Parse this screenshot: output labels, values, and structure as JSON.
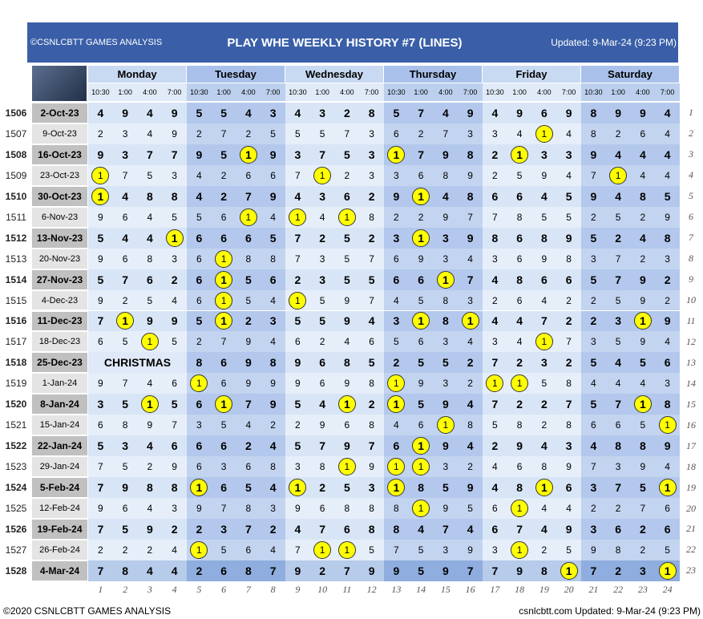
{
  "header": {
    "copyright": "©CSNLCBTT GAMES ANALYSIS",
    "title": "PLAY WHE WEEKLY HISTORY #7 (LINES)",
    "updated": "Updated: 9-Mar-24 (9:23 PM)"
  },
  "days": [
    "Monday",
    "Tuesday",
    "Wednesday",
    "Thursday",
    "Friday",
    "Saturday"
  ],
  "times": [
    "10:30",
    "1:00",
    "4:00",
    "7:00"
  ],
  "rows": [
    {
      "week": 1506,
      "date": "2-Oct-23",
      "values": [
        4,
        9,
        4,
        9,
        5,
        5,
        4,
        3,
        4,
        3,
        2,
        8,
        5,
        7,
        4,
        9,
        4,
        9,
        6,
        9,
        8,
        9,
        9,
        4
      ],
      "index": 1
    },
    {
      "week": 1507,
      "date": "9-Oct-23",
      "values": [
        2,
        3,
        4,
        9,
        2,
        7,
        2,
        5,
        5,
        5,
        7,
        3,
        6,
        2,
        7,
        3,
        3,
        4,
        1,
        4,
        8,
        2,
        6,
        4
      ],
      "index": 2
    },
    {
      "week": 1508,
      "date": "16-Oct-23",
      "values": [
        9,
        3,
        7,
        7,
        9,
        5,
        1,
        9,
        3,
        7,
        5,
        3,
        1,
        7,
        9,
        8,
        2,
        1,
        3,
        3,
        9,
        4,
        4,
        4
      ],
      "index": 3
    },
    {
      "week": 1509,
      "date": "23-Oct-23",
      "values": [
        1,
        7,
        5,
        3,
        4,
        2,
        6,
        6,
        7,
        1,
        2,
        3,
        3,
        6,
        8,
        9,
        2,
        5,
        9,
        4,
        7,
        1,
        4,
        4
      ],
      "index": 4
    },
    {
      "week": 1510,
      "date": "30-Oct-23",
      "values": [
        1,
        4,
        8,
        8,
        4,
        2,
        7,
        9,
        4,
        3,
        6,
        2,
        9,
        1,
        4,
        8,
        6,
        6,
        4,
        5,
        9,
        4,
        8,
        5
      ],
      "index": 5
    },
    {
      "week": 1511,
      "date": "6-Nov-23",
      "values": [
        9,
        6,
        4,
        5,
        5,
        6,
        1,
        4,
        1,
        4,
        1,
        8,
        2,
        2,
        9,
        7,
        7,
        8,
        5,
        5,
        2,
        5,
        2,
        9
      ],
      "index": 6
    },
    {
      "week": 1512,
      "date": "13-Nov-23",
      "values": [
        5,
        4,
        4,
        1,
        6,
        6,
        6,
        5,
        7,
        2,
        5,
        2,
        3,
        1,
        3,
        9,
        8,
        6,
        8,
        9,
        5,
        2,
        4,
        8
      ],
      "index": 7
    },
    {
      "week": 1513,
      "date": "20-Nov-23",
      "values": [
        9,
        6,
        8,
        3,
        6,
        1,
        8,
        8,
        7,
        3,
        5,
        7,
        6,
        9,
        3,
        4,
        3,
        6,
        9,
        8,
        3,
        7,
        2,
        3
      ],
      "index": 8
    },
    {
      "week": 1514,
      "date": "27-Nov-23",
      "values": [
        5,
        7,
        6,
        2,
        6,
        1,
        5,
        6,
        2,
        3,
        5,
        5,
        6,
        6,
        1,
        7,
        4,
        8,
        6,
        6,
        5,
        7,
        9,
        2
      ],
      "index": 9
    },
    {
      "week": 1515,
      "date": "4-Dec-23",
      "values": [
        9,
        2,
        5,
        4,
        6,
        1,
        5,
        4,
        1,
        5,
        9,
        7,
        4,
        5,
        8,
        3,
        2,
        6,
        4,
        2,
        2,
        5,
        9,
        2
      ],
      "index": 10
    },
    {
      "week": 1516,
      "date": "11-Dec-23",
      "values": [
        7,
        1,
        9,
        9,
        5,
        1,
        2,
        3,
        5,
        5,
        9,
        4,
        3,
        1,
        8,
        1,
        4,
        4,
        7,
        2,
        2,
        3,
        1,
        9
      ],
      "index": 11
    },
    {
      "week": 1517,
      "date": "18-Dec-23",
      "values": [
        6,
        5,
        1,
        5,
        2,
        7,
        9,
        4,
        6,
        2,
        4,
        6,
        5,
        6,
        3,
        4,
        3,
        4,
        1,
        7,
        3,
        5,
        9,
        4
      ],
      "index": 12
    },
    {
      "week": 1518,
      "date": "25-Dec-23",
      "label": "CHRISTMAS",
      "values": [
        8,
        6,
        9,
        8,
        9,
        6,
        8,
        5,
        2,
        5,
        5,
        2,
        7,
        2,
        3,
        2,
        5,
        4,
        5,
        6
      ],
      "index": 13
    },
    {
      "week": 1519,
      "date": "1-Jan-24",
      "values": [
        9,
        7,
        4,
        6,
        1,
        6,
        9,
        9,
        9,
        6,
        9,
        8,
        1,
        9,
        3,
        2,
        1,
        1,
        5,
        8,
        4,
        4,
        4,
        3
      ],
      "index": 14
    },
    {
      "week": 1520,
      "date": "8-Jan-24",
      "values": [
        3,
        5,
        1,
        5,
        6,
        1,
        7,
        9,
        5,
        4,
        1,
        2,
        1,
        5,
        9,
        4,
        7,
        2,
        2,
        7,
        5,
        7,
        1,
        8
      ],
      "index": 15
    },
    {
      "week": 1521,
      "date": "15-Jan-24",
      "values": [
        6,
        8,
        9,
        7,
        3,
        5,
        4,
        2,
        2,
        9,
        6,
        8,
        4,
        6,
        1,
        8,
        5,
        8,
        2,
        8,
        6,
        6,
        5,
        1
      ],
      "index": 16
    },
    {
      "week": 1522,
      "date": "22-Jan-24",
      "values": [
        5,
        3,
        4,
        6,
        6,
        6,
        2,
        4,
        5,
        7,
        9,
        7,
        6,
        1,
        9,
        4,
        2,
        9,
        4,
        3,
        4,
        8,
        8,
        9
      ],
      "index": 17
    },
    {
      "week": 1523,
      "date": "29-Jan-24",
      "values": [
        7,
        5,
        2,
        9,
        6,
        3,
        6,
        8,
        3,
        8,
        1,
        9,
        1,
        1,
        3,
        2,
        4,
        6,
        8,
        9,
        7,
        3,
        9,
        4
      ],
      "index": 18
    },
    {
      "week": 1524,
      "date": "5-Feb-24",
      "values": [
        7,
        9,
        8,
        8,
        1,
        6,
        5,
        4,
        1,
        2,
        5,
        3,
        1,
        8,
        5,
        9,
        4,
        8,
        1,
        6,
        3,
        7,
        5,
        1
      ],
      "index": 19
    },
    {
      "week": 1525,
      "date": "12-Feb-24",
      "values": [
        9,
        6,
        4,
        3,
        9,
        7,
        8,
        3,
        9,
        6,
        8,
        8,
        8,
        1,
        9,
        5,
        6,
        1,
        4,
        4,
        2,
        2,
        7,
        6
      ],
      "index": 20
    },
    {
      "week": 1526,
      "date": "19-Feb-24",
      "values": [
        7,
        5,
        9,
        2,
        2,
        3,
        7,
        2,
        4,
        7,
        6,
        8,
        8,
        4,
        7,
        4,
        6,
        7,
        4,
        9,
        3,
        6,
        2,
        6
      ],
      "index": 21
    },
    {
      "week": 1527,
      "date": "26-Feb-24",
      "values": [
        2,
        2,
        2,
        4,
        1,
        5,
        6,
        4,
        7,
        1,
        1,
        5,
        7,
        5,
        3,
        9,
        3,
        1,
        2,
        5,
        9,
        8,
        2,
        5
      ],
      "index": 22
    },
    {
      "week": 1528,
      "date": "4-Mar-24",
      "values": [
        7,
        8,
        4,
        4,
        2,
        6,
        8,
        7,
        9,
        2,
        7,
        9,
        9,
        5,
        9,
        7,
        7,
        9,
        8,
        1,
        7,
        2,
        3,
        1
      ],
      "index": 23
    }
  ],
  "column_numbers": [
    1,
    2,
    3,
    4,
    5,
    6,
    7,
    8,
    9,
    10,
    11,
    12,
    13,
    14,
    15,
    16,
    17,
    18,
    19,
    20,
    21,
    22,
    23,
    24
  ],
  "footer": {
    "left": "©2020 CSNLCBTT GAMES ANALYSIS",
    "right": "csnlcbtt.com Updated: 9-Mar-24 (9:23 PM)"
  }
}
